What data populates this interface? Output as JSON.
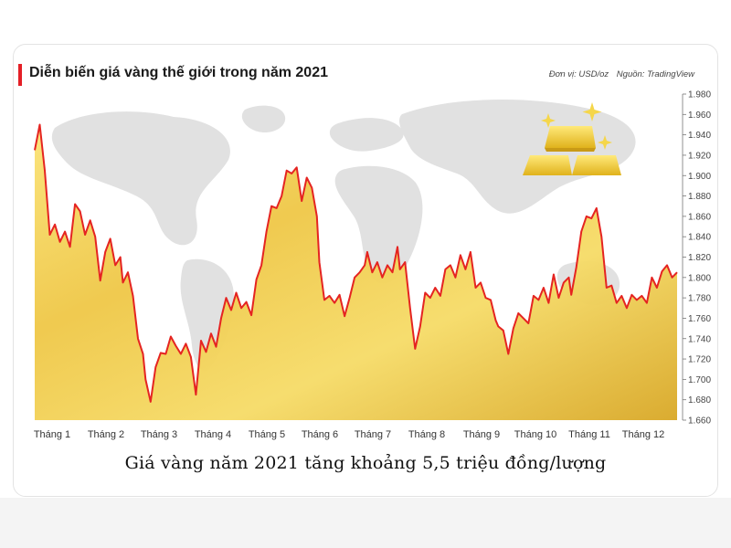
{
  "chart_data": {
    "type": "line",
    "title": "Diễn biến giá vàng thế giới trong năm 2021",
    "unit_label": "Đơn vị: USD/oz",
    "source_label": "Nguồn: TradingView",
    "categories": [
      "Tháng 1",
      "Tháng 2",
      "Tháng 3",
      "Tháng 4",
      "Tháng 5",
      "Tháng 6",
      "Tháng 7",
      "Tháng 8",
      "Tháng 9",
      "Tháng 10",
      "Tháng 11",
      "Tháng 12"
    ],
    "yticks": [
      "1.980",
      "1.960",
      "1.940",
      "1.920",
      "1.900",
      "1.880",
      "1.860",
      "1.840",
      "1.820",
      "1.800",
      "1.780",
      "1.760",
      "1.740",
      "1.720",
      "1.700",
      "1.680",
      "1.660"
    ],
    "ylim": [
      1660,
      1980
    ],
    "x_unit": "month index (1 = Tháng 1)",
    "series": [
      {
        "color": "#e52421",
        "points": [
          [
            0.85,
            1925
          ],
          [
            0.95,
            1950
          ],
          [
            1.05,
            1905
          ],
          [
            1.15,
            1842
          ],
          [
            1.25,
            1852
          ],
          [
            1.35,
            1835
          ],
          [
            1.45,
            1845
          ],
          [
            1.55,
            1830
          ],
          [
            1.65,
            1872
          ],
          [
            1.75,
            1865
          ],
          [
            1.85,
            1842
          ],
          [
            1.95,
            1856
          ],
          [
            2.05,
            1840
          ],
          [
            2.15,
            1797
          ],
          [
            2.25,
            1825
          ],
          [
            2.35,
            1838
          ],
          [
            2.45,
            1812
          ],
          [
            2.55,
            1820
          ],
          [
            2.6,
            1795
          ],
          [
            2.7,
            1805
          ],
          [
            2.8,
            1782
          ],
          [
            2.9,
            1740
          ],
          [
            3.0,
            1725
          ],
          [
            3.05,
            1700
          ],
          [
            3.15,
            1678
          ],
          [
            3.25,
            1712
          ],
          [
            3.35,
            1726
          ],
          [
            3.45,
            1725
          ],
          [
            3.55,
            1742
          ],
          [
            3.65,
            1733
          ],
          [
            3.75,
            1725
          ],
          [
            3.85,
            1735
          ],
          [
            3.95,
            1722
          ],
          [
            4.05,
            1685
          ],
          [
            4.15,
            1738
          ],
          [
            4.25,
            1727
          ],
          [
            4.35,
            1745
          ],
          [
            4.45,
            1732
          ],
          [
            4.55,
            1760
          ],
          [
            4.65,
            1780
          ],
          [
            4.75,
            1768
          ],
          [
            4.85,
            1785
          ],
          [
            4.95,
            1770
          ],
          [
            5.05,
            1776
          ],
          [
            5.15,
            1763
          ],
          [
            5.25,
            1798
          ],
          [
            5.35,
            1812
          ],
          [
            5.45,
            1845
          ],
          [
            5.55,
            1870
          ],
          [
            5.65,
            1868
          ],
          [
            5.75,
            1880
          ],
          [
            5.85,
            1905
          ],
          [
            5.95,
            1902
          ],
          [
            6.05,
            1908
          ],
          [
            6.15,
            1875
          ],
          [
            6.25,
            1898
          ],
          [
            6.35,
            1888
          ],
          [
            6.45,
            1860
          ],
          [
            6.5,
            1815
          ],
          [
            6.6,
            1778
          ],
          [
            6.7,
            1782
          ],
          [
            6.8,
            1775
          ],
          [
            6.9,
            1783
          ],
          [
            7.0,
            1762
          ],
          [
            7.1,
            1780
          ],
          [
            7.2,
            1800
          ],
          [
            7.3,
            1805
          ],
          [
            7.4,
            1812
          ],
          [
            7.45,
            1825
          ],
          [
            7.55,
            1805
          ],
          [
            7.65,
            1815
          ],
          [
            7.75,
            1800
          ],
          [
            7.85,
            1812
          ],
          [
            7.95,
            1805
          ],
          [
            8.05,
            1830
          ],
          [
            8.1,
            1808
          ],
          [
            8.2,
            1815
          ],
          [
            8.3,
            1770
          ],
          [
            8.4,
            1730
          ],
          [
            8.5,
            1752
          ],
          [
            8.6,
            1785
          ],
          [
            8.7,
            1780
          ],
          [
            8.8,
            1790
          ],
          [
            8.9,
            1782
          ],
          [
            9.0,
            1808
          ],
          [
            9.1,
            1812
          ],
          [
            9.2,
            1800
          ],
          [
            9.3,
            1822
          ],
          [
            9.4,
            1808
          ],
          [
            9.5,
            1825
          ],
          [
            9.6,
            1790
          ],
          [
            9.7,
            1795
          ],
          [
            9.8,
            1780
          ],
          [
            9.9,
            1778
          ],
          [
            10.0,
            1758
          ],
          [
            10.05,
            1752
          ],
          [
            10.15,
            1748
          ],
          [
            10.25,
            1725
          ],
          [
            10.35,
            1750
          ],
          [
            10.45,
            1765
          ],
          [
            10.55,
            1760
          ],
          [
            10.65,
            1755
          ],
          [
            10.75,
            1782
          ],
          [
            10.85,
            1778
          ],
          [
            10.95,
            1790
          ],
          [
            11.05,
            1775
          ],
          [
            11.15,
            1803
          ],
          [
            11.25,
            1780
          ],
          [
            11.35,
            1795
          ],
          [
            11.45,
            1800
          ],
          [
            11.5,
            1783
          ],
          [
            11.6,
            1810
          ],
          [
            11.7,
            1845
          ],
          [
            11.8,
            1860
          ],
          [
            11.9,
            1858
          ],
          [
            12.0,
            1868
          ],
          [
            12.1,
            1840
          ],
          [
            12.2,
            1790
          ],
          [
            12.3,
            1792
          ],
          [
            12.4,
            1775
          ],
          [
            12.5,
            1782
          ],
          [
            12.6,
            1770
          ],
          [
            12.7,
            1783
          ],
          [
            12.8,
            1778
          ],
          [
            12.9,
            1782
          ],
          [
            13.0,
            1775
          ],
          [
            13.1,
            1800
          ],
          [
            13.2,
            1790
          ],
          [
            13.3,
            1806
          ],
          [
            13.4,
            1812
          ],
          [
            13.5,
            1800
          ],
          [
            13.6,
            1805
          ]
        ]
      }
    ],
    "grid": false,
    "legend": "none"
  },
  "caption": "Giá vàng năm 2021 tăng khoảng 5,5 triệu đồng/lượng",
  "colors": {
    "title_bar": "#e41f26",
    "line": "#e52421",
    "gold_light": "#fbe47a",
    "gold_dark": "#d4a11e",
    "map": "#dcdcdc"
  },
  "decor": {
    "background_map": "world-map-graphic",
    "illustration": "gold-bars-icon"
  }
}
